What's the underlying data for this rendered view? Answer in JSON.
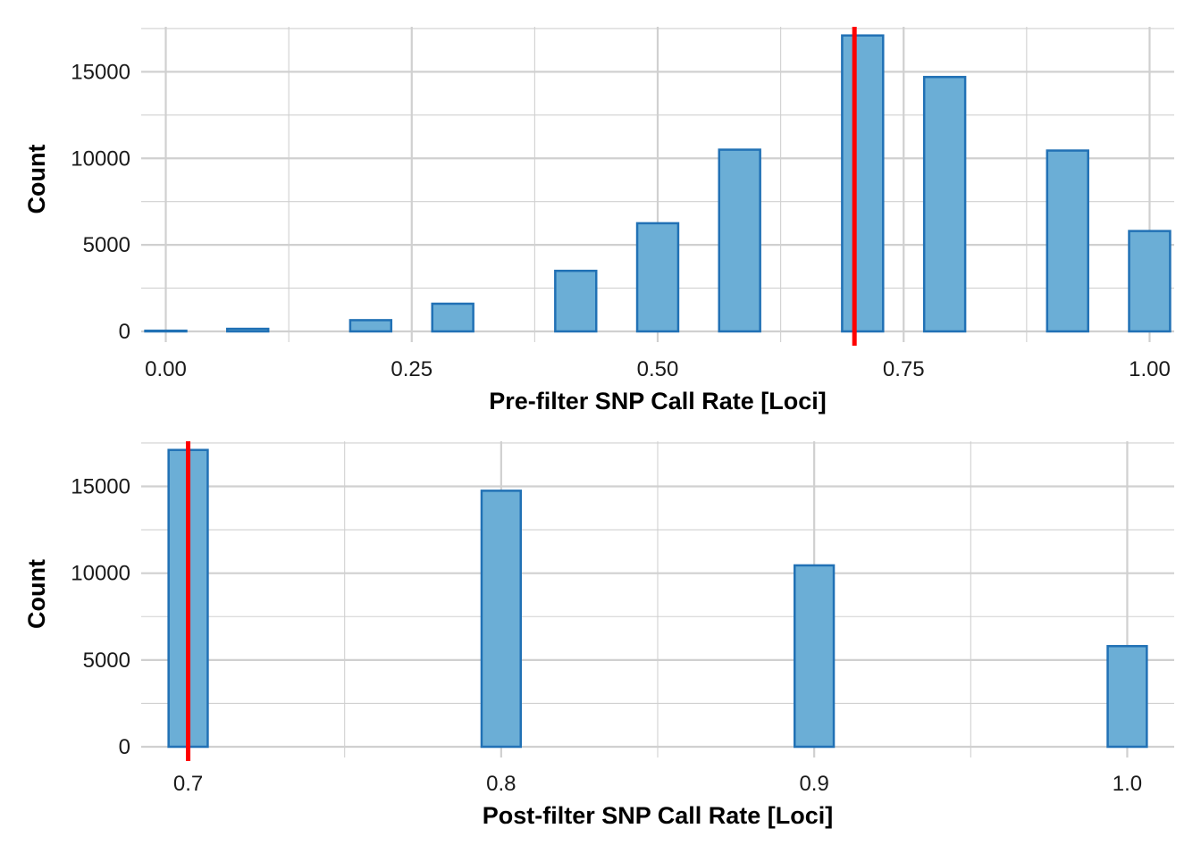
{
  "chart_data": [
    {
      "type": "bar",
      "xlabel": "Pre-filter SNP Call Rate [Loci]",
      "ylabel": "Count",
      "xlim": [
        -0.025,
        1.025
      ],
      "ylim": [
        0,
        17600
      ],
      "x_ticks": [
        0.0,
        0.25,
        0.5,
        0.75,
        1.0
      ],
      "x_tick_labels": [
        "0.00",
        "0.25",
        "0.50",
        "0.75",
        "1.00"
      ],
      "y_ticks": [
        0,
        5000,
        10000,
        15000
      ],
      "y_tick_labels": [
        "0",
        "5000",
        "10000",
        "15000"
      ],
      "bin_width": 0.0417,
      "bin_centers": [
        0.0,
        0.0417,
        0.0833,
        0.125,
        0.1667,
        0.2083,
        0.25,
        0.2917,
        0.3333,
        0.375,
        0.4167,
        0.4583,
        0.5,
        0.5417,
        0.5833,
        0.625,
        0.6667,
        0.7083,
        0.75,
        0.7917,
        0.8333,
        0.875,
        0.9167,
        0.9583,
        1.0
      ],
      "values": [
        40,
        0,
        150,
        0,
        0,
        650,
        0,
        1600,
        0,
        0,
        3500,
        0,
        6250,
        0,
        10500,
        0,
        0,
        17100,
        0,
        14700,
        0,
        0,
        10450,
        0,
        5800
      ],
      "threshold": 0.7,
      "grid": true,
      "colors": {
        "bar_fill": "#6baed6",
        "bar_edge": "#2171b5",
        "threshold": "#ff0000",
        "grid": "#d0d0d0"
      }
    },
    {
      "type": "bar",
      "xlabel": "Post-filter SNP Call Rate [Loci]",
      "ylabel": "Count",
      "xlim": [
        0.685,
        1.015
      ],
      "ylim": [
        0,
        17600
      ],
      "x_ticks": [
        0.7,
        0.8,
        0.9,
        1.0
      ],
      "x_tick_labels": [
        "0.7",
        "0.8",
        "0.9",
        "1.0"
      ],
      "y_ticks": [
        0,
        5000,
        10000,
        15000
      ],
      "y_tick_labels": [
        "0",
        "5000",
        "10000",
        "15000"
      ],
      "bin_width": 0.0125,
      "bin_centers": [
        0.7,
        0.7125,
        0.725,
        0.7375,
        0.75,
        0.7625,
        0.775,
        0.7875,
        0.8,
        0.8125,
        0.825,
        0.8375,
        0.85,
        0.8625,
        0.875,
        0.8875,
        0.9,
        0.9125,
        0.925,
        0.9375,
        0.95,
        0.9625,
        0.975,
        0.9875,
        1.0
      ],
      "values": [
        17100,
        0,
        0,
        0,
        0,
        0,
        0,
        0,
        14750,
        0,
        0,
        0,
        0,
        0,
        0,
        0,
        10450,
        0,
        0,
        0,
        0,
        0,
        0,
        0,
        5800
      ],
      "threshold": 0.7,
      "grid": true,
      "colors": {
        "bar_fill": "#6baed6",
        "bar_edge": "#2171b5",
        "threshold": "#ff0000",
        "grid": "#d0d0d0"
      }
    }
  ]
}
